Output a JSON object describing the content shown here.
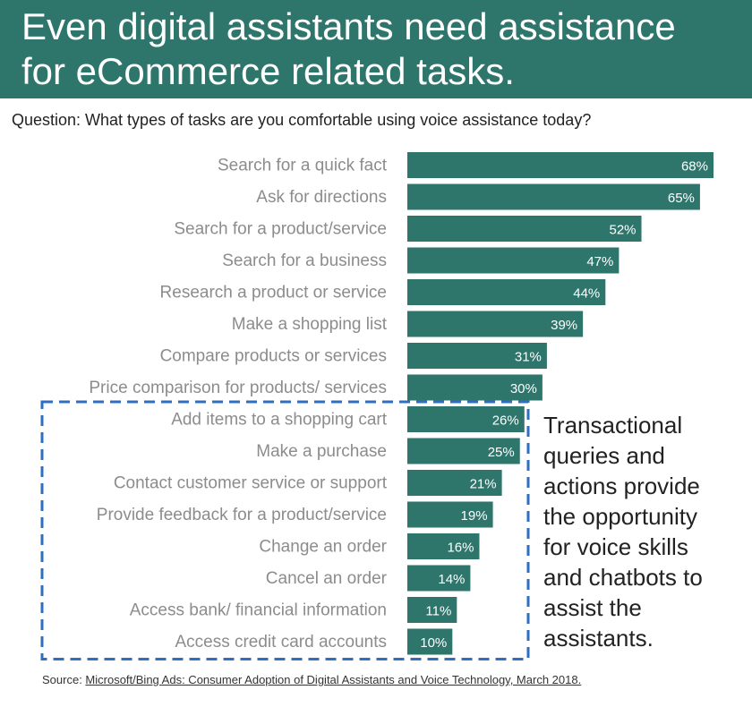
{
  "title": {
    "line1": "Even digital assistants need assistance",
    "line2": "for eCommerce related tasks."
  },
  "question": "Question: What types of tasks are you comfortable using voice assistance today?",
  "chart_data": {
    "type": "bar",
    "orientation": "horizontal",
    "categories": [
      "Search for a quick fact",
      "Ask for directions",
      "Search for a product/service",
      "Search for a business",
      "Research a product or service",
      "Make a shopping list",
      "Compare products or services",
      "Price comparison for products/ services",
      "Add items to a shopping cart",
      "Make a purchase",
      "Contact customer service or support",
      "Provide feedback for a product/service",
      "Change an order",
      "Cancel an order",
      "Access bank/ financial information",
      "Access credit card accounts"
    ],
    "values": [
      68,
      65,
      52,
      47,
      44,
      39,
      31,
      30,
      26,
      25,
      21,
      19,
      16,
      14,
      11,
      10
    ],
    "value_labels": [
      "68%",
      "65%",
      "52%",
      "47%",
      "44%",
      "39%",
      "31%",
      "30%",
      "26%",
      "25%",
      "21%",
      "19%",
      "16%",
      "14%",
      "11%",
      "10%"
    ],
    "unit": "%",
    "xlim": [
      0,
      68
    ],
    "grid": false,
    "bar_color": "#2e766c",
    "highlight_box_color": "#2f6fc0",
    "highlight_range": [
      8,
      15
    ]
  },
  "annotation": {
    "lines": [
      "Transactional",
      "queries and",
      "actions provide",
      "the opportunity",
      "for voice skills",
      "and chatbots to",
      "assist the",
      "assistants."
    ]
  },
  "source": {
    "prefix": "Source: ",
    "link_text": "Microsoft/Bing Ads: Consumer Adoption of Digital Assistants and Voice Technology, March 2018."
  },
  "colors": {
    "banner": "#2e766c",
    "bar": "#2e766c",
    "label_text": "#8c8c8c",
    "dashed_box": "#2f6fc0"
  }
}
